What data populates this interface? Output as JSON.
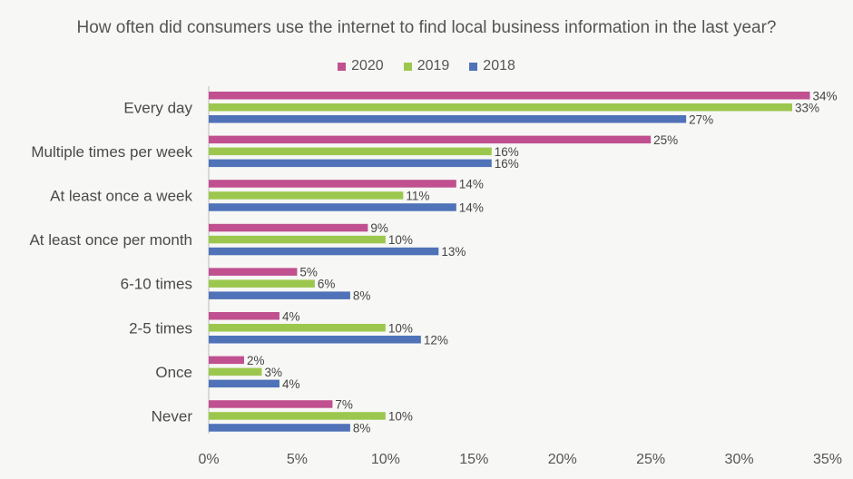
{
  "chart_data": {
    "type": "bar",
    "orientation": "horizontal",
    "title": "How often did consumers use the internet to find local business information in the last year?",
    "categories": [
      "Every day",
      "Multiple times per week",
      "At least once a week",
      "At least once per month",
      "6-10 times",
      "2-5 times",
      "Once",
      "Never"
    ],
    "series": [
      {
        "name": "2020",
        "color": "#c0508f",
        "values": [
          34,
          25,
          14,
          9,
          5,
          4,
          2,
          7
        ]
      },
      {
        "name": "2019",
        "color": "#9cc74e",
        "values": [
          33,
          16,
          11,
          10,
          6,
          10,
          3,
          10
        ]
      },
      {
        "name": "2018",
        "color": "#4f72b8",
        "values": [
          27,
          16,
          14,
          13,
          8,
          12,
          4,
          8
        ]
      }
    ],
    "xlim": [
      0,
      35
    ],
    "xticks": [
      0,
      5,
      10,
      15,
      20,
      25,
      30,
      35
    ],
    "value_suffix": "%",
    "legend_position": "top",
    "grid": false
  }
}
